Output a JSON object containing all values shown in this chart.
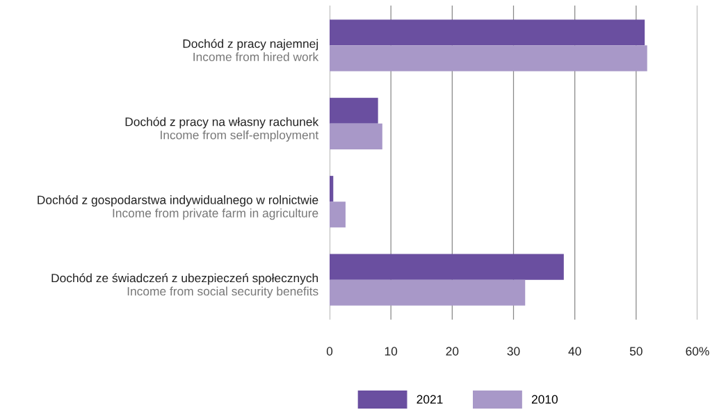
{
  "chart_data": {
    "type": "bar",
    "orientation": "horizontal",
    "categories": [
      "Dochód z pracy najemnej\nIncome from hired work",
      "Dochód z pracy na własny rachunek\nIncome from self-employment",
      "Dochód z gospodarstwa indywidualnego w rolnictwie\nIncome from private farm in agriculture",
      "Dochód ze świadczeń z ubezpieczeń społecznych\nIncome from social security benefits"
    ],
    "series": [
      {
        "name": "2021",
        "color": "#6a4fa0",
        "values": [
          51.4,
          7.9,
          0.6,
          38.2
        ]
      },
      {
        "name": "2010",
        "color": "#a898c8",
        "values": [
          51.8,
          8.6,
          2.6,
          31.9
        ]
      }
    ],
    "xlim": [
      0,
      60
    ],
    "xticks": [
      0,
      10,
      20,
      30,
      40,
      50,
      {
        "value": 60,
        "label": "60%"
      }
    ],
    "grid": "x",
    "legend": "bottom"
  }
}
